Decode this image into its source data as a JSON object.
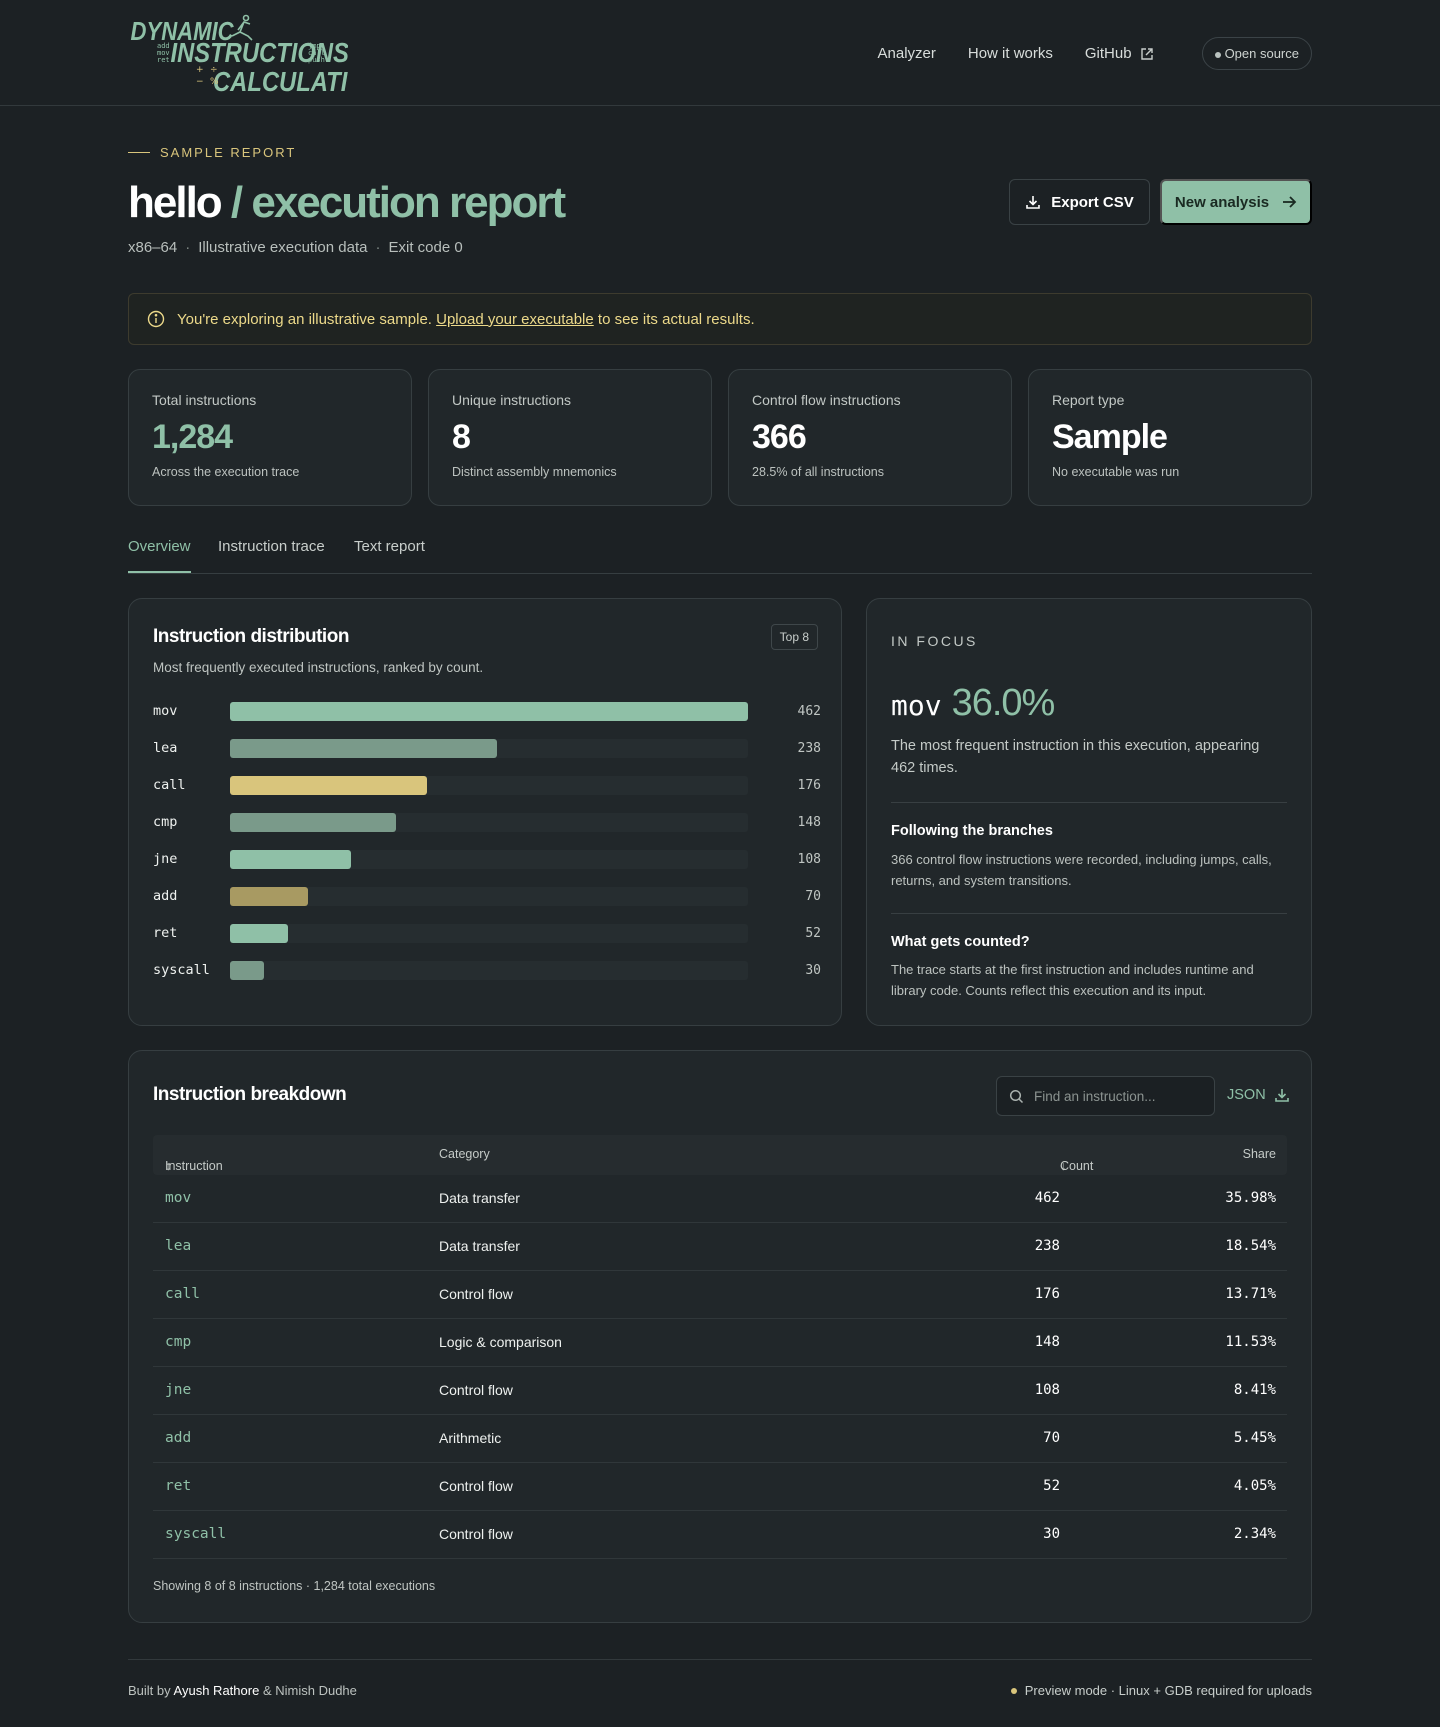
{
  "brand": {
    "logo_lines": [
      "DYNAMIC",
      "INSTRUCTIONS",
      "CALCULATION"
    ],
    "logo_small_left": [
      "add",
      "mov",
      "ret"
    ],
    "logo_small_right": [
      "jmp",
      "call",
      "push"
    ],
    "logo_symbols": [
      "+",
      "÷",
      "−",
      "%"
    ]
  },
  "nav": {
    "items": [
      "Analyzer",
      "How it works",
      "GitHub"
    ],
    "pill": "Open source"
  },
  "header": {
    "eyebrow": "SAMPLE REPORT",
    "title_main": "hello",
    "title_accent": "/ execution report",
    "meta": [
      "x86–64",
      "Illustrative execution data",
      "Exit code 0"
    ],
    "meta_sep": "·",
    "export_label": "Export CSV",
    "new_label": "New analysis"
  },
  "notice": {
    "before": "You're exploring an illustrative sample.",
    "link": "Upload your executable",
    "after": "to see its actual results."
  },
  "stats": [
    {
      "label": "Total instructions",
      "value": "1,284",
      "sub": "Across the execution trace"
    },
    {
      "label": "Unique instructions",
      "value": "8",
      "sub": "Distinct assembly mnemonics"
    },
    {
      "label": "Control flow instructions",
      "value": "366",
      "sub": "28.5% of all instructions"
    },
    {
      "label": "Report type",
      "value": "Sample",
      "sub": "No executable was run"
    }
  ],
  "tabs": [
    "Overview",
    "Instruction trace",
    "Text report"
  ],
  "distribution": {
    "title": "Instruction distribution",
    "subtitle": "Most frequently executed instructions, ranked by count.",
    "badge": "Top 8"
  },
  "chart_data": {
    "type": "bar",
    "orientation": "horizontal",
    "categories": [
      "mov",
      "lea",
      "call",
      "cmp",
      "jne",
      "add",
      "ret",
      "syscall"
    ],
    "values": [
      462,
      238,
      176,
      148,
      108,
      70,
      52,
      30
    ],
    "colors": [
      "#8fc0a7",
      "#7a9a8a",
      "#d9c57c",
      "#7a9a8a",
      "#8fc0a7",
      "#a89a62",
      "#8fc0a7",
      "#7a9a8a"
    ],
    "xlim": [
      0,
      462
    ]
  },
  "focus": {
    "eyebrow": "IN FOCUS",
    "mnemonic": "mov",
    "percent": "36.0%",
    "text": "The most frequent instruction in this execution, appearing 462 times.",
    "h1": "Following the branches",
    "p1": "366 control flow instructions were recorded, including jumps, calls, returns, and system transitions.",
    "h2": "What gets counted?",
    "p2": "The trace starts at the first instruction and includes runtime and library code. Counts reflect this execution and its input."
  },
  "breakdown": {
    "title": "Instruction breakdown",
    "search_placeholder": "Find an instruction...",
    "json_label": "JSON",
    "columns": [
      "Instruction",
      "Category",
      "Count",
      "Share"
    ],
    "rows": [
      {
        "ins": "mov",
        "cat": "Data transfer",
        "count": "462",
        "share": "35.98%"
      },
      {
        "ins": "lea",
        "cat": "Data transfer",
        "count": "238",
        "share": "18.54%"
      },
      {
        "ins": "call",
        "cat": "Control flow",
        "count": "176",
        "share": "13.71%"
      },
      {
        "ins": "cmp",
        "cat": "Logic & comparison",
        "count": "148",
        "share": "11.53%"
      },
      {
        "ins": "jne",
        "cat": "Control flow",
        "count": "108",
        "share": "8.41%"
      },
      {
        "ins": "add",
        "cat": "Arithmetic",
        "count": "70",
        "share": "5.45%"
      },
      {
        "ins": "ret",
        "cat": "Control flow",
        "count": "52",
        "share": "4.05%"
      },
      {
        "ins": "syscall",
        "cat": "Control flow",
        "count": "30",
        "share": "2.34%"
      }
    ],
    "footer": "Showing 8 of 8 instructions · 1,284 total executions"
  },
  "footer": {
    "built_by": "Built by",
    "author1": "Ayush Rathore",
    "amp": "&",
    "author2": "Nimish Dudhe",
    "status": "Preview mode · Linux + GDB required for uploads"
  },
  "colors": {
    "accent": "#8fc0a7",
    "gold": "#d9c57c",
    "background": "#1c2124",
    "panel": "#21272a"
  }
}
